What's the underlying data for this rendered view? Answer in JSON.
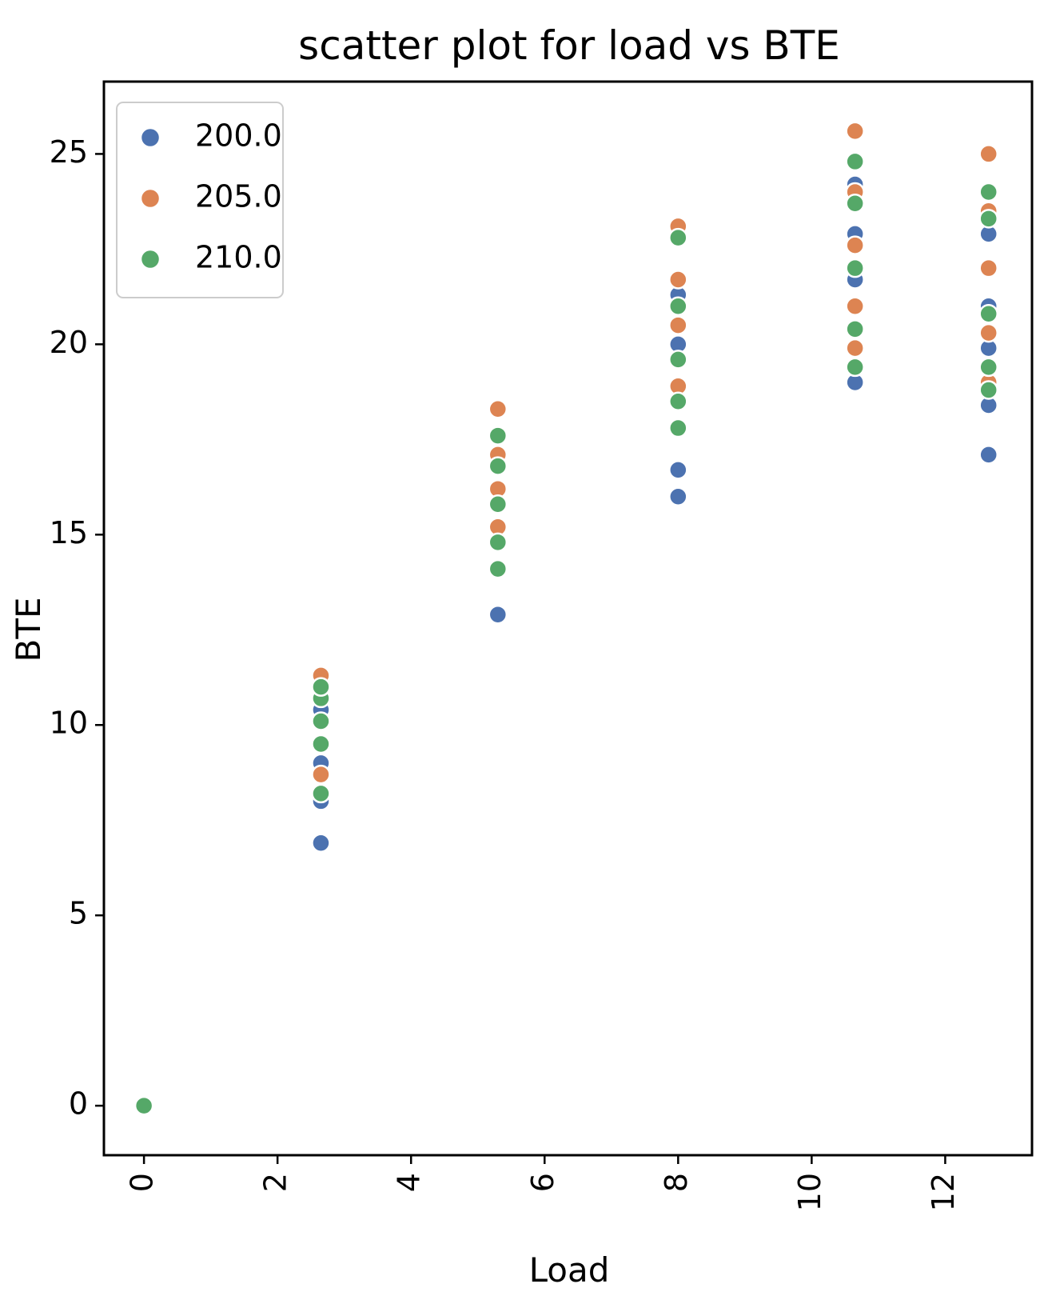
{
  "chart_data": {
    "type": "scatter",
    "title": "scatter plot for load vs BTE",
    "xlabel": "Load",
    "ylabel": "BTE",
    "xlim": [
      -0.6,
      13.3
    ],
    "ylim": [
      -1.3,
      26.9
    ],
    "xticks": [
      0,
      2,
      4,
      6,
      8,
      10,
      12
    ],
    "yticks": [
      0,
      5,
      10,
      15,
      20,
      25
    ],
    "grid": false,
    "legend_position": "top-left",
    "series": [
      {
        "name": "200.0",
        "color": "#4c72b0",
        "points": [
          [
            0,
            0
          ],
          [
            2.65,
            6.9
          ],
          [
            2.65,
            8.0
          ],
          [
            2.65,
            9.0
          ],
          [
            2.65,
            10.4
          ],
          [
            5.3,
            12.9
          ],
          [
            5.3,
            15.8
          ],
          [
            8.0,
            16.0
          ],
          [
            8.0,
            16.7
          ],
          [
            8.0,
            20.0
          ],
          [
            8.0,
            21.3
          ],
          [
            10.65,
            19.0
          ],
          [
            10.65,
            21.7
          ],
          [
            10.65,
            22.9
          ],
          [
            10.65,
            24.2
          ],
          [
            12.65,
            17.1
          ],
          [
            12.65,
            18.4
          ],
          [
            12.65,
            19.9
          ],
          [
            12.65,
            21.0
          ],
          [
            12.65,
            22.9
          ]
        ]
      },
      {
        "name": "205.0",
        "color": "#dd8452",
        "points": [
          [
            0,
            0
          ],
          [
            2.65,
            8.7
          ],
          [
            2.65,
            11.3
          ],
          [
            5.3,
            15.2
          ],
          [
            5.3,
            16.2
          ],
          [
            5.3,
            17.1
          ],
          [
            5.3,
            18.3
          ],
          [
            8.0,
            18.9
          ],
          [
            8.0,
            20.5
          ],
          [
            8.0,
            21.7
          ],
          [
            8.0,
            23.1
          ],
          [
            10.65,
            19.9
          ],
          [
            10.65,
            21.0
          ],
          [
            10.65,
            22.6
          ],
          [
            10.65,
            24.0
          ],
          [
            10.65,
            25.6
          ],
          [
            12.65,
            19.0
          ],
          [
            12.65,
            20.3
          ],
          [
            12.65,
            22.0
          ],
          [
            12.65,
            23.5
          ],
          [
            12.65,
            25.0
          ]
        ]
      },
      {
        "name": "210.0",
        "color": "#55a868",
        "points": [
          [
            0,
            0
          ],
          [
            2.65,
            8.2
          ],
          [
            2.65,
            9.5
          ],
          [
            2.65,
            10.1
          ],
          [
            2.65,
            10.7
          ],
          [
            2.65,
            11.0
          ],
          [
            5.3,
            14.1
          ],
          [
            5.3,
            14.8
          ],
          [
            5.3,
            15.8
          ],
          [
            5.3,
            16.8
          ],
          [
            5.3,
            17.6
          ],
          [
            8.0,
            17.8
          ],
          [
            8.0,
            18.5
          ],
          [
            8.0,
            19.6
          ],
          [
            8.0,
            21.0
          ],
          [
            8.0,
            22.8
          ],
          [
            10.65,
            19.4
          ],
          [
            10.65,
            20.4
          ],
          [
            10.65,
            22.0
          ],
          [
            10.65,
            23.7
          ],
          [
            10.65,
            24.8
          ],
          [
            12.65,
            18.8
          ],
          [
            12.65,
            19.4
          ],
          [
            12.65,
            20.8
          ],
          [
            12.65,
            23.3
          ],
          [
            12.65,
            24.0
          ]
        ]
      }
    ]
  }
}
